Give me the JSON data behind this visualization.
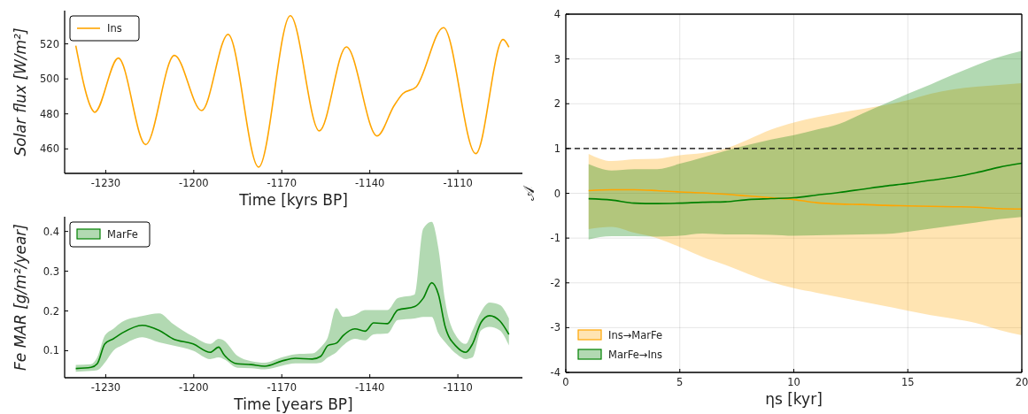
{
  "chart_data": [
    {
      "type": "line",
      "ylabel": "Solar flux [W/m²]",
      "xlabel": "Time [kyrs BP]",
      "xlim": [
        -1244,
        -1088
      ],
      "ylim": [
        446,
        539
      ],
      "xticks": [
        -1230,
        -1200,
        -1170,
        -1140,
        -1110
      ],
      "yticks": [
        460,
        480,
        500,
        520
      ],
      "legend": "top left",
      "grid": false,
      "x": [
        -1240.2,
        -1234.4,
        -1233.8,
        -1225.7,
        -1216.4,
        -1206.6,
        -1197.3,
        -1188.3,
        -1177.9,
        -1167.1,
        -1157.2,
        -1148.0,
        -1137.5,
        -1131.7,
        -1128.8,
        -1124.2,
        -1114.9,
        -1103.9,
        -1094.6,
        -1092.6
      ],
      "series": [
        {
          "name": "Ins",
          "color": "#ffa500",
          "values": [
            519,
            481.9,
            480.9,
            511.9,
            462.5,
            513.4,
            481.9,
            525.4,
            449.6,
            536.1,
            470.3,
            518.3,
            467.4,
            484.8,
            491.5,
            495.4,
            529.3,
            457.3,
            522.5,
            518.1
          ]
        }
      ]
    },
    {
      "type": "line",
      "ylabel": "Fe MAR [g/m²/year]",
      "xlabel": "Time [years BP]",
      "xlim": [
        -1244,
        -1088
      ],
      "ylim": [
        0.032,
        0.437
      ],
      "xticks": [
        -1230,
        -1200,
        -1170,
        -1140,
        -1110
      ],
      "yticks": [
        0.1,
        0.2,
        0.3,
        0.4
      ],
      "legend": "top left",
      "grid": false,
      "x": [
        -1240.2,
        -1235,
        -1232.9,
        -1230.3,
        -1227.4,
        -1224.5,
        -1217.6,
        -1211.8,
        -1207.1,
        -1200.2,
        -1194.4,
        -1191.5,
        -1189.8,
        -1185.1,
        -1180.5,
        -1175.8,
        -1170,
        -1165.4,
        -1159.6,
        -1156.7,
        -1154.3,
        -1151.4,
        -1149.1,
        -1145.1,
        -1141.6,
        -1138.7,
        -1134,
        -1130.5,
        -1124.7,
        -1121.8,
        -1118.9,
        -1116.6,
        -1114.3,
        -1110.3,
        -1107.3,
        -1105,
        -1102.1,
        -1099.2,
        -1095.7,
        -1092.6
      ],
      "series": [
        {
          "name": "MarFe",
          "color": "#008000",
          "values": [
            0.055,
            0.058,
            0.067,
            0.117,
            0.13,
            0.144,
            0.164,
            0.151,
            0.13,
            0.117,
            0.096,
            0.109,
            0.091,
            0.067,
            0.065,
            0.061,
            0.074,
            0.081,
            0.079,
            0.086,
            0.113,
            0.119,
            0.138,
            0.155,
            0.149,
            0.17,
            0.168,
            0.202,
            0.211,
            0.232,
            0.271,
            0.241,
            0.16,
            0.109,
            0.096,
            0.117,
            0.171,
            0.188,
            0.175,
            0.141
          ],
          "upper": [
            0.064,
            0.066,
            0.083,
            0.138,
            0.155,
            0.172,
            0.187,
            0.194,
            0.168,
            0.136,
            0.117,
            0.13,
            0.126,
            0.087,
            0.074,
            0.07,
            0.083,
            0.091,
            0.093,
            0.109,
            0.134,
            0.207,
            0.185,
            0.19,
            0.202,
            0.202,
            0.202,
            0.232,
            0.241,
            0.407,
            0.424,
            0.356,
            0.224,
            0.134,
            0.117,
            0.151,
            0.198,
            0.221,
            0.215,
            0.181
          ],
          "lower": [
            0.047,
            0.049,
            0.051,
            0.07,
            0.1,
            0.113,
            0.134,
            0.121,
            0.113,
            0.1,
            0.079,
            0.083,
            0.079,
            0.057,
            0.056,
            0.053,
            0.062,
            0.068,
            0.068,
            0.07,
            0.083,
            0.096,
            0.113,
            0.13,
            0.126,
            0.141,
            0.143,
            0.177,
            0.181,
            0.185,
            0.185,
            0.143,
            0.121,
            0.091,
            0.079,
            0.083,
            0.151,
            0.16,
            0.151,
            0.113
          ]
        }
      ]
    },
    {
      "type": "line",
      "ylabel": "𝒜",
      "xlabel": "ηs [kyr]",
      "xlim": [
        0,
        20
      ],
      "ylim": [
        -4,
        4
      ],
      "xticks": [
        0,
        5,
        10,
        15,
        20
      ],
      "yticks": [
        -4,
        -3,
        -2,
        -1,
        0,
        1,
        2,
        3,
        4
      ],
      "legend": "bottom left",
      "grid": true,
      "ref_lines": [
        {
          "axis": "y",
          "value": 1,
          "color": "#000000",
          "line_style": "dashed"
        }
      ],
      "x": [
        1,
        2,
        3,
        4,
        5,
        6,
        7,
        8,
        9,
        10,
        11,
        12,
        13,
        14,
        15,
        16,
        17,
        18,
        19,
        20
      ],
      "series": [
        {
          "name": "Ins→MarFe",
          "color": "#ffa500",
          "values": [
            0.06,
            0.08,
            0.08,
            0.06,
            0.03,
            0.01,
            -0.02,
            -0.06,
            -0.1,
            -0.14,
            -0.21,
            -0.24,
            -0.25,
            -0.27,
            -0.28,
            -0.29,
            -0.3,
            -0.31,
            -0.34,
            -0.35
          ],
          "upper": [
            0.88,
            0.72,
            0.76,
            0.77,
            0.85,
            0.9,
            1.0,
            1.2,
            1.42,
            1.58,
            1.7,
            1.8,
            1.88,
            1.97,
            2.08,
            2.22,
            2.32,
            2.38,
            2.42,
            2.46
          ],
          "lower": [
            -0.8,
            -0.75,
            -0.88,
            -1.0,
            -1.2,
            -1.42,
            -1.6,
            -1.8,
            -1.98,
            -2.12,
            -2.22,
            -2.32,
            -2.42,
            -2.52,
            -2.62,
            -2.72,
            -2.8,
            -2.9,
            -3.05,
            -3.17
          ]
        },
        {
          "name": "MarFe→Ins",
          "color": "#008000",
          "values": [
            -0.12,
            -0.15,
            -0.22,
            -0.23,
            -0.22,
            -0.2,
            -0.19,
            -0.14,
            -0.12,
            -0.1,
            -0.04,
            0.02,
            0.09,
            0.16,
            0.22,
            0.29,
            0.36,
            0.46,
            0.58,
            0.67
          ],
          "upper": [
            0.65,
            0.51,
            0.54,
            0.54,
            0.66,
            0.8,
            0.95,
            1.08,
            1.2,
            1.3,
            1.42,
            1.55,
            1.78,
            2.0,
            2.22,
            2.43,
            2.65,
            2.86,
            3.04,
            3.18
          ],
          "lower": [
            -1.03,
            -0.96,
            -0.96,
            -0.97,
            -0.95,
            -0.9,
            -0.92,
            -0.92,
            -0.93,
            -0.95,
            -0.94,
            -0.93,
            -0.92,
            -0.91,
            -0.86,
            -0.79,
            -0.72,
            -0.65,
            -0.58,
            -0.53
          ]
        }
      ]
    }
  ]
}
